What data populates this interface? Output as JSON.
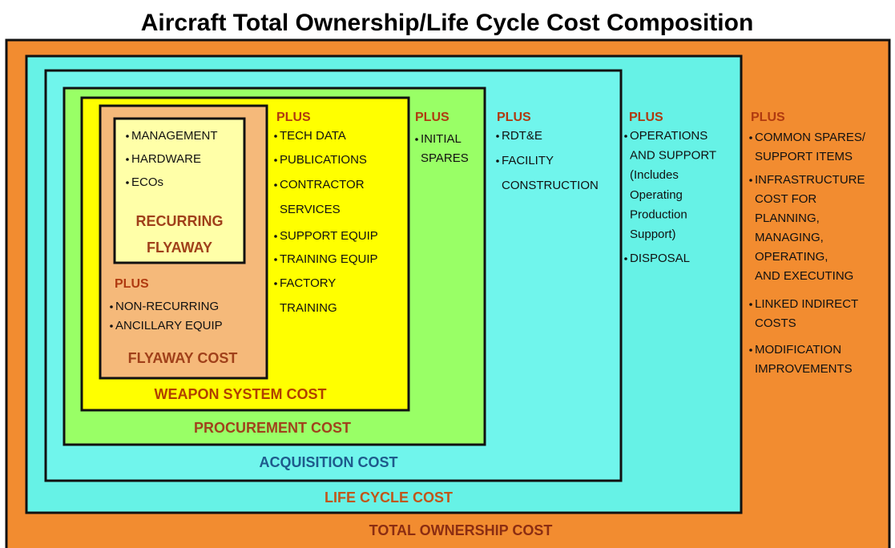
{
  "title": "Aircraft Total Ownership/Life Cycle Cost Composition",
  "boxes": [
    {
      "label": [
        "TOTAL OWNERSHIP COST"
      ],
      "plus": "PLUS",
      "items": [
        [
          "COMMON SPARES/",
          "SUPPORT ITEMS"
        ],
        [
          "INFRASTRUCTURE",
          "COST FOR",
          "PLANNING,",
          "MANAGING,",
          "OPERATING,",
          "AND EXECUTING"
        ],
        [
          "LINKED INDIRECT",
          "COSTS"
        ],
        [
          "MODIFICATION",
          "IMPROVEMENTS"
        ]
      ]
    },
    {
      "label": [
        "LIFE CYCLE COST"
      ],
      "plus": "PLUS",
      "items": [
        [
          "OPERATIONS",
          "AND SUPPORT",
          "(Includes",
          "Operating",
          "Production",
          "Support)"
        ],
        [
          "DISPOSAL"
        ]
      ]
    },
    {
      "label": [
        "ACQUISITION COST"
      ],
      "plus": "PLUS",
      "items": [
        [
          "RDT&E"
        ],
        [
          "FACILITY",
          "CONSTRUCTION"
        ]
      ]
    },
    {
      "label": [
        "PROCUREMENT COST"
      ],
      "plus": "PLUS",
      "items": [
        [
          "INITIAL",
          "SPARES"
        ]
      ]
    },
    {
      "label": [
        "WEAPON SYSTEM COST"
      ],
      "plus": "PLUS",
      "items": [
        [
          "TECH DATA"
        ],
        [
          "PUBLICATIONS"
        ],
        [
          "CONTRACTOR",
          "SERVICES"
        ],
        [
          "SUPPORT EQUIP"
        ],
        [
          "TRAINING EQUIP"
        ],
        [
          "FACTORY",
          "TRAINING"
        ]
      ]
    },
    {
      "label": [
        "FLYAWAY COST"
      ],
      "plus": "PLUS",
      "items": [
        [
          "NON-RECURRING"
        ],
        [
          "ANCILLARY EQUIP"
        ]
      ]
    },
    {
      "label": [
        "RECURRING",
        "FLYAWAY"
      ],
      "items": [
        [
          "MANAGEMENT"
        ],
        [
          "HARDWARE"
        ],
        [
          "ECOs"
        ]
      ]
    }
  ]
}
